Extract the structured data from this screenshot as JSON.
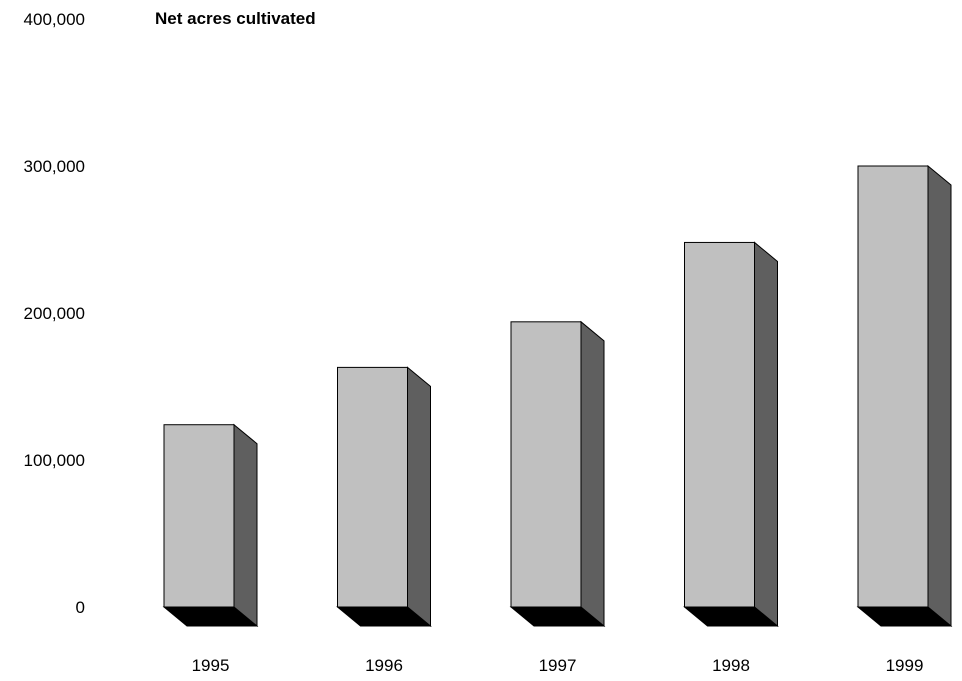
{
  "chart_data": {
    "type": "bar",
    "title": "Net acres cultivated",
    "xlabel": "",
    "ylabel": "",
    "categories": [
      "1995",
      "1996",
      "1997",
      "1998",
      "1999"
    ],
    "values": [
      124000,
      163000,
      194000,
      248000,
      300000
    ],
    "ylim": [
      0,
      400000
    ],
    "yticks": [
      "0",
      "100,000",
      "200,000",
      "300,000",
      "400,000"
    ],
    "grid": false,
    "legend": "none",
    "style": "3d-column"
  },
  "colors": {
    "face": "#c0c0c0",
    "side": "#5f5f5f",
    "base": "#000000",
    "outline": "#000000"
  }
}
